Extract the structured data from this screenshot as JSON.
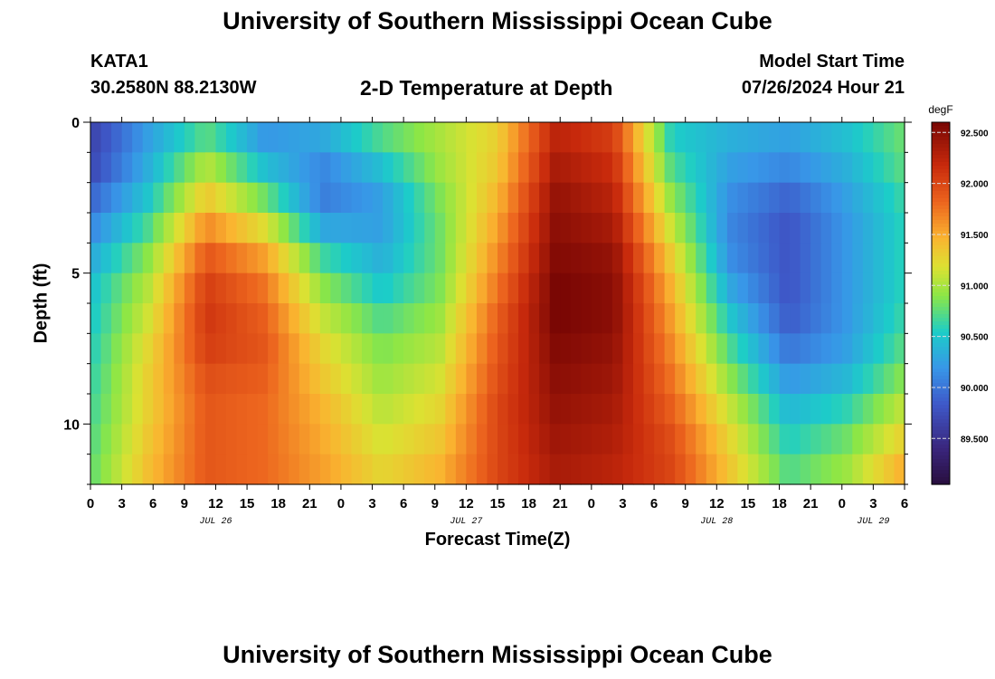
{
  "page": {
    "title": "University of Southern Mississippi Ocean Cube",
    "footer_title": "University of Southern Mississippi Ocean Cube",
    "station_id": "KATA1",
    "coordinates": "30.2580N  88.2130W",
    "subtitle": "2-D Temperature at Depth",
    "model_start_label": "Model Start Time",
    "model_start_value": "07/26/2024 Hour 21"
  },
  "chart_data": {
    "type": "heatmap",
    "title": "2-D Temperature at Depth",
    "xlabel": "Forecast Time(Z)",
    "ylabel": "Depth (ft)",
    "x_start_hour_label": 0,
    "x_range_hours": [
      0,
      78
    ],
    "x_tick_step_hours": 3,
    "x_tick_labels": [
      "0",
      "3",
      "6",
      "9",
      "12",
      "15",
      "18",
      "21",
      "0",
      "3",
      "6",
      "9",
      "12",
      "15",
      "18",
      "21",
      "0",
      "3",
      "6",
      "9",
      "12",
      "15",
      "18",
      "21",
      "0",
      "3",
      "6"
    ],
    "date_labels": [
      {
        "text": "JUL 26",
        "hour": 12
      },
      {
        "text": "JUL 27",
        "hour": 36
      },
      {
        "text": "JUL 28",
        "hour": 60
      },
      {
        "text": "JUL 29",
        "hour": 75
      }
    ],
    "y_range_ft": [
      0,
      12
    ],
    "y_major_ticks": [
      0,
      5,
      10
    ],
    "y_tick_labels": [
      "0",
      "5",
      "10"
    ],
    "colorbar": {
      "units": "degF",
      "range": [
        89.05,
        92.6
      ],
      "ticks": [
        89.5,
        90.0,
        90.5,
        91.0,
        91.5,
        92.0,
        92.5
      ],
      "tick_labels": [
        "89.500",
        "90.000",
        "90.500",
        "91.000",
        "91.500",
        "92.000",
        "92.500"
      ]
    },
    "depths_ft": [
      0,
      1,
      2,
      3,
      4,
      5,
      6,
      7,
      8,
      9,
      10,
      11,
      12
    ],
    "time_hours": [
      0,
      3,
      6,
      9,
      12,
      15,
      18,
      21,
      24,
      27,
      30,
      33,
      36,
      39,
      42,
      45,
      48,
      51,
      54,
      57,
      60,
      63,
      66,
      69,
      72,
      75,
      78
    ],
    "temperature_degF": [
      [
        89.7,
        90.2,
        90.6,
        90.1,
        90.4,
        90.8,
        91.0,
        91.3,
        92.2,
        92.0,
        90.5,
        90.4,
        90.3,
        90.5,
        90.8
      ],
      [
        89.6,
        90.3,
        90.9,
        90.3,
        90.2,
        90.6,
        91.0,
        91.3,
        92.3,
        92.1,
        90.6,
        90.3,
        90.2,
        90.4,
        90.8
      ],
      [
        89.8,
        90.4,
        91.2,
        90.6,
        90.0,
        90.3,
        90.9,
        91.4,
        92.4,
        92.2,
        90.8,
        90.2,
        90.0,
        90.3,
        90.7
      ],
      [
        90.0,
        90.6,
        91.5,
        91.0,
        90.1,
        90.2,
        90.8,
        91.5,
        92.5,
        92.3,
        91.0,
        90.1,
        89.8,
        90.2,
        90.6
      ],
      [
        90.2,
        90.8,
        91.8,
        91.4,
        90.5,
        90.3,
        90.8,
        91.6,
        92.5,
        92.4,
        91.2,
        90.1,
        89.8,
        90.2,
        90.6
      ],
      [
        90.4,
        91.0,
        92.0,
        91.7,
        90.8,
        90.4,
        90.8,
        91.7,
        92.6,
        92.5,
        91.4,
        90.2,
        89.8,
        90.2,
        90.6
      ],
      [
        90.5,
        91.1,
        92.1,
        91.8,
        91.0,
        90.6,
        90.9,
        91.8,
        92.6,
        92.5,
        91.5,
        90.4,
        89.8,
        90.2,
        90.6
      ],
      [
        90.5,
        91.2,
        92.1,
        91.9,
        91.2,
        90.8,
        91.0,
        91.9,
        92.6,
        92.5,
        91.6,
        90.6,
        89.9,
        90.2,
        90.7
      ],
      [
        90.6,
        91.3,
        92.0,
        91.9,
        91.3,
        90.9,
        91.1,
        91.9,
        92.5,
        92.4,
        91.7,
        90.8,
        90.1,
        90.3,
        90.8
      ],
      [
        90.6,
        91.3,
        91.9,
        91.8,
        91.4,
        91.0,
        91.2,
        92.0,
        92.5,
        92.4,
        91.8,
        91.0,
        90.3,
        90.5,
        91.0
      ],
      [
        90.7,
        91.3,
        91.9,
        91.8,
        91.5,
        91.1,
        91.3,
        92.0,
        92.4,
        92.3,
        91.9,
        91.2,
        90.5,
        90.7,
        91.2
      ],
      [
        90.7,
        91.4,
        91.9,
        91.8,
        91.5,
        91.2,
        91.4,
        92.0,
        92.4,
        92.3,
        92.0,
        91.3,
        90.6,
        90.9,
        91.4
      ],
      [
        90.8,
        91.4,
        91.9,
        91.8,
        91.6,
        91.3,
        91.5,
        92.0,
        92.3,
        92.2,
        92.0,
        91.4,
        90.8,
        91.0,
        91.6
      ]
    ]
  }
}
